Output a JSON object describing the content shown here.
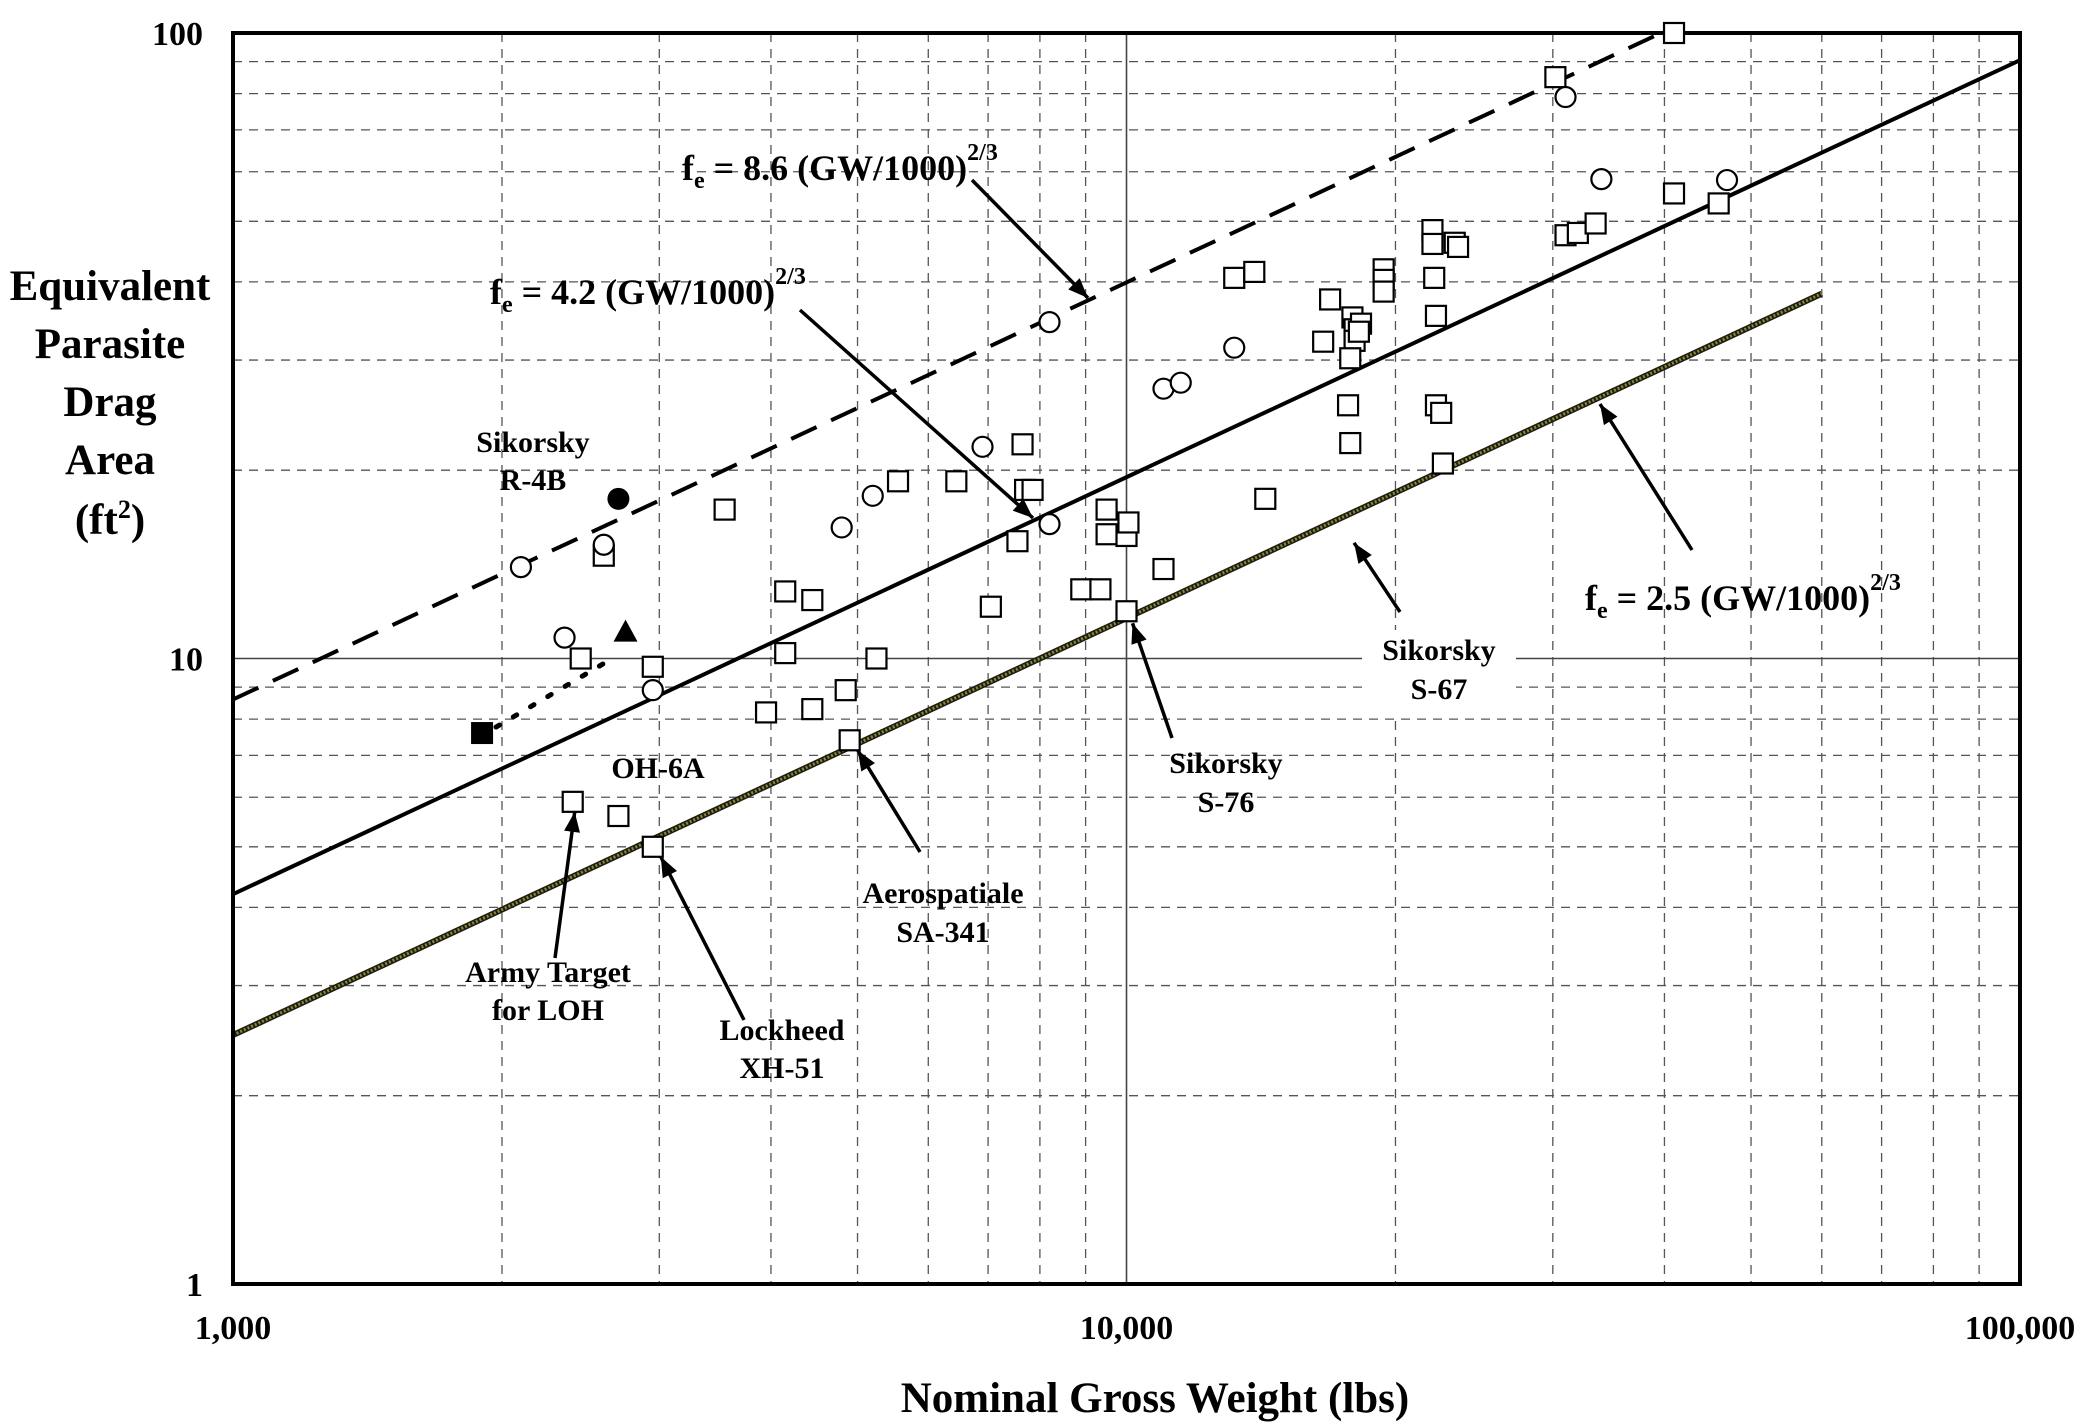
{
  "chart_data": {
    "type": "scatter",
    "title": "",
    "xlabel": "Nominal Gross Weight  (lbs)",
    "ylabel": [
      "Equivalent",
      "Parasite",
      "Drag",
      "Area",
      "(ft",
      "2",
      ")"
    ],
    "x_scale": "log",
    "y_scale": "log",
    "xlim": [
      1000,
      100000
    ],
    "ylim": [
      1,
      100
    ],
    "x_ticks": [
      "1,000",
      "10,000",
      "100,000"
    ],
    "y_ticks": [
      "1",
      "10",
      "100"
    ],
    "grid": true,
    "lines": [
      {
        "id": "line-8-6",
        "coef": 8.6,
        "style": "dashed",
        "x_range": [
          1000,
          41000
        ],
        "label": {
          "f": "f",
          "e": "e",
          "text": " = 8.6 (GW/1000)",
          "exp": "2/3"
        }
      },
      {
        "id": "line-4-2",
        "coef": 4.2,
        "style": "solid",
        "x_range": [
          1000,
          100000
        ],
        "label": {
          "f": "f",
          "e": "e",
          "text": " = 4.2 (GW/1000)",
          "exp": "2/3"
        }
      },
      {
        "id": "line-2-5",
        "coef": 2.5,
        "style": "olive",
        "x_range": [
          1000,
          60000
        ],
        "label": {
          "f": "f",
          "e": "e",
          "text": " = 2.5 (GW/1000)",
          "exp": "2/3"
        }
      }
    ],
    "dotted_segment": {
      "points": [
        [
          1900,
          7.6
        ],
        [
          2650,
          10.2
        ]
      ]
    },
    "series": [
      {
        "marker": "square-open",
        "points": [
          [
            41000,
            100
          ],
          [
            30200,
            85
          ],
          [
            3550,
            17.3
          ],
          [
            2600,
            14.6
          ],
          [
            2450,
            10
          ],
          [
            2950,
            9.7
          ],
          [
            4150,
            12.8
          ],
          [
            4450,
            12.4
          ],
          [
            4150,
            10.2
          ],
          [
            3950,
            8.2
          ],
          [
            4450,
            8.3
          ],
          [
            4850,
            8.9
          ],
          [
            5250,
            10
          ],
          [
            4900,
            7.4
          ],
          [
            2400,
            5.9
          ],
          [
            2700,
            5.6
          ],
          [
            2950,
            5.0
          ],
          [
            5550,
            19.2
          ],
          [
            6450,
            19.2
          ],
          [
            7650,
            22
          ],
          [
            7700,
            18.6
          ],
          [
            7850,
            18.6
          ],
          [
            7550,
            15.4
          ],
          [
            7050,
            12.1
          ],
          [
            9500,
            17.3
          ],
          [
            9500,
            15.8
          ],
          [
            10000,
            15.7
          ],
          [
            10050,
            16.5
          ],
          [
            8900,
            12.9
          ],
          [
            9350,
            12.9
          ],
          [
            10000,
            11.9
          ],
          [
            11000,
            13.9
          ],
          [
            13200,
            40.6
          ],
          [
            13900,
            41.5
          ],
          [
            14300,
            18
          ],
          [
            16600,
            32.1
          ],
          [
            16900,
            37.5
          ],
          [
            17900,
            35.1
          ],
          [
            18000,
            33.6
          ],
          [
            18000,
            32.2
          ],
          [
            17800,
            30.2
          ],
          [
            17700,
            25.4
          ],
          [
            17800,
            22.1
          ],
          [
            18300,
            34.3
          ],
          [
            18200,
            33.3
          ],
          [
            19400,
            41.9
          ],
          [
            19400,
            40.3
          ],
          [
            19400,
            38.6
          ],
          [
            22000,
            48.4
          ],
          [
            22000,
            46
          ],
          [
            22100,
            40.6
          ],
          [
            22200,
            35.3
          ],
          [
            22200,
            25.4
          ],
          [
            22500,
            24.7
          ],
          [
            22600,
            20.5
          ],
          [
            23300,
            46.2
          ],
          [
            23500,
            45.5
          ],
          [
            31000,
            47.5
          ],
          [
            32000,
            47.9
          ],
          [
            33500,
            49.6
          ],
          [
            41000,
            55.4
          ],
          [
            46000,
            53.4
          ]
        ]
      },
      {
        "marker": "circle-open",
        "points": [
          [
            31000,
            79
          ],
          [
            34000,
            58.4
          ],
          [
            47000,
            58.2
          ],
          [
            2100,
            14
          ],
          [
            2600,
            15.2
          ],
          [
            2350,
            10.8
          ],
          [
            2950,
            8.9
          ],
          [
            4800,
            16.2
          ],
          [
            5200,
            18.2
          ],
          [
            6900,
            21.8
          ],
          [
            8200,
            16.4
          ],
          [
            8200,
            34.5
          ],
          [
            11000,
            27
          ],
          [
            11500,
            27.6
          ],
          [
            13200,
            31.4
          ]
        ]
      },
      {
        "marker": "circle-filled",
        "points": [
          [
            2700,
            18
          ]
        ]
      },
      {
        "marker": "triangle-filled",
        "points": [
          [
            2750,
            11
          ]
        ]
      },
      {
        "marker": "square-filled",
        "points": [
          [
            1900,
            7.6
          ]
        ]
      }
    ],
    "annotations": [
      {
        "id": "sikorsky-r4b",
        "lines": [
          "Sikorsky",
          "R-4B"
        ]
      },
      {
        "id": "oh-6a",
        "lines": [
          "OH-6A"
        ]
      },
      {
        "id": "army-target",
        "lines": [
          "Army Target",
          "for LOH"
        ],
        "point": [
          2400,
          5.9
        ]
      },
      {
        "id": "lockheed",
        "lines": [
          "Lockheed",
          "XH-51"
        ],
        "point": [
          2950,
          5.0
        ]
      },
      {
        "id": "aerospatiale",
        "lines": [
          "Aerospatiale",
          "SA-341"
        ],
        "point": [
          4900,
          7.4
        ]
      },
      {
        "id": "sikorsky-s76",
        "lines": [
          "Sikorsky",
          "S-76"
        ],
        "point": [
          10000,
          11.9
        ]
      },
      {
        "id": "sikorsky-s67",
        "lines": [
          "Sikorsky",
          "S-67"
        ],
        "point": [
          17700,
          16
        ]
      }
    ]
  }
}
